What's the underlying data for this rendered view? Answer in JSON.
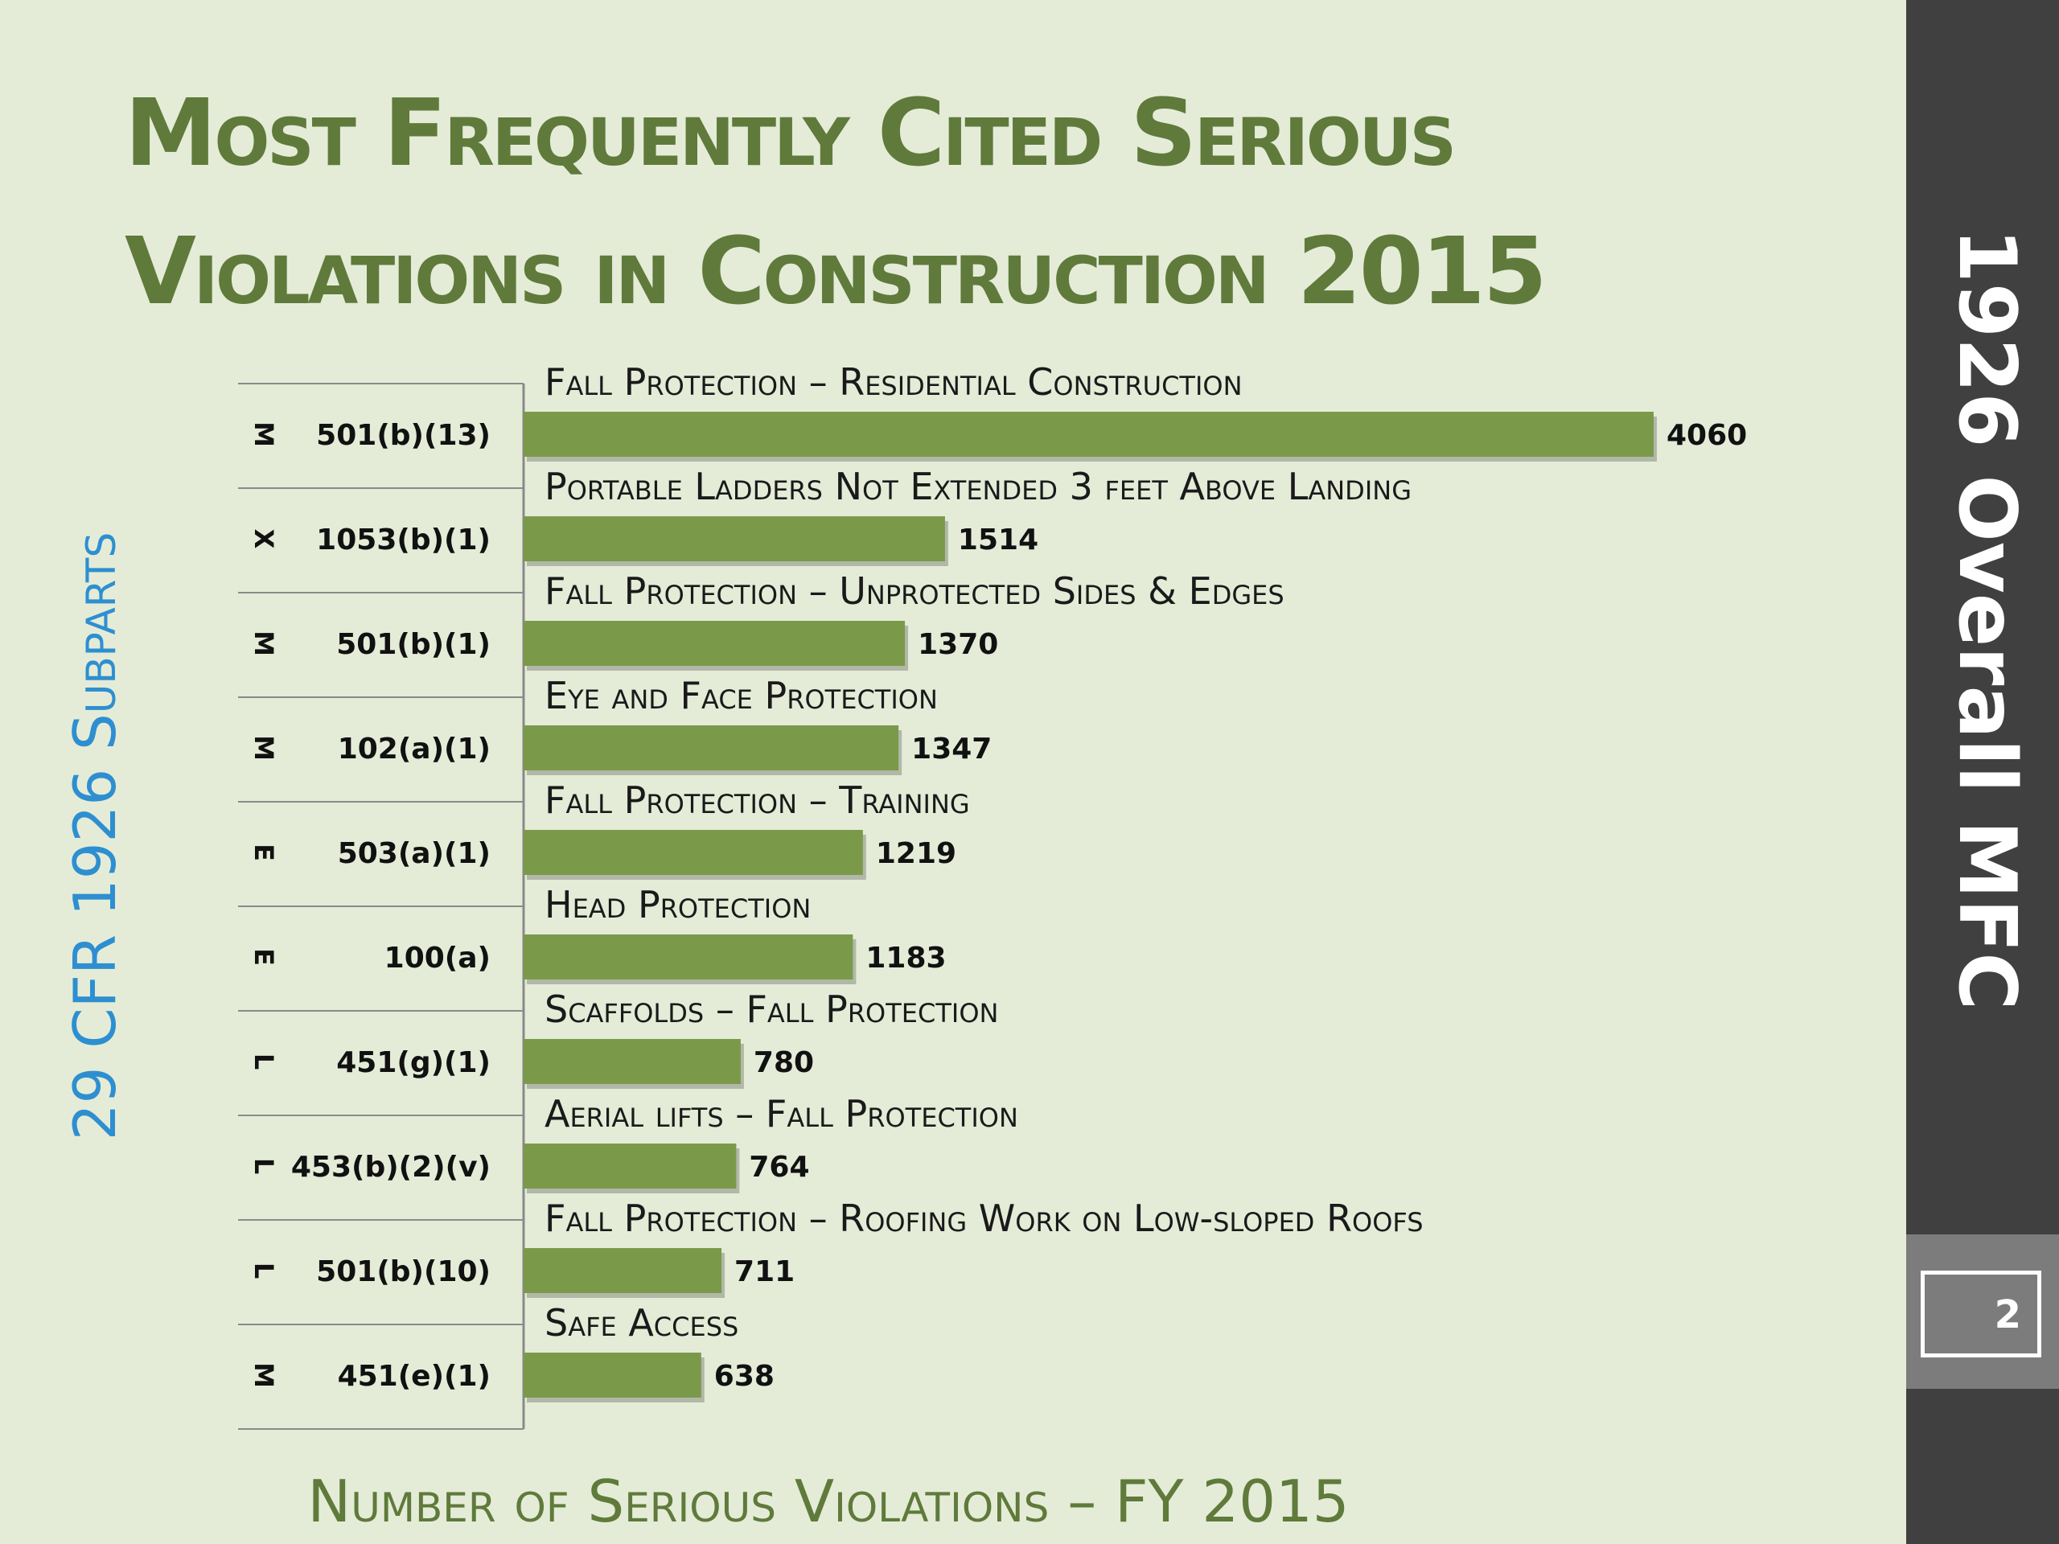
{
  "title": {
    "line1": "Most Frequently Cited Serious",
    "line2": "Violations in Construction 2015"
  },
  "sidebar": {
    "label": "1926 Overall MFC",
    "page_number": "2"
  },
  "colors": {
    "bar": "#7a9a4a",
    "title": "#5f7a3a",
    "ylabel": "#2e8fd0",
    "sidebar": "#404040"
  },
  "chart_data": {
    "type": "bar",
    "orientation": "horizontal",
    "xlabel": "Number of Serious Violations – FY 2015",
    "ylabel": "29 CFR 1926 Subparts",
    "grid": false,
    "xlim": [
      0,
      4060
    ],
    "rows": [
      {
        "subpart": "M",
        "code": "501(b)(13)",
        "label": "Fall Protection – Residential Construction",
        "value": 4060
      },
      {
        "subpart": "X",
        "code": "1053(b)(1)",
        "label": "Portable Ladders Not Extended 3 feet Above Landing",
        "value": 1514
      },
      {
        "subpart": "M",
        "code": "501(b)(1)",
        "label": "Fall Protection – Unprotected Sides & Edges",
        "value": 1370
      },
      {
        "subpart": "M",
        "code": "102(a)(1)",
        "label": "Eye and Face Protection",
        "value": 1347
      },
      {
        "subpart": "E",
        "code": "503(a)(1)",
        "label": "Fall Protection – Training",
        "value": 1219
      },
      {
        "subpart": "E",
        "code": "100(a)",
        "label": "Head Protection",
        "value": 1183
      },
      {
        "subpart": "L",
        "code": "451(g)(1)",
        "label": "Scaffolds – Fall Protection",
        "value": 780
      },
      {
        "subpart": "L",
        "code": "453(b)(2)(v)",
        "label": "Aerial lifts – Fall Protection",
        "value": 764
      },
      {
        "subpart": "L",
        "code": "501(b)(10)",
        "label": "Fall Protection – Roofing Work on Low-sloped Roofs",
        "value": 711
      },
      {
        "subpart": "M",
        "code": "451(e)(1)",
        "label": "Safe Access",
        "value": 638
      }
    ]
  }
}
